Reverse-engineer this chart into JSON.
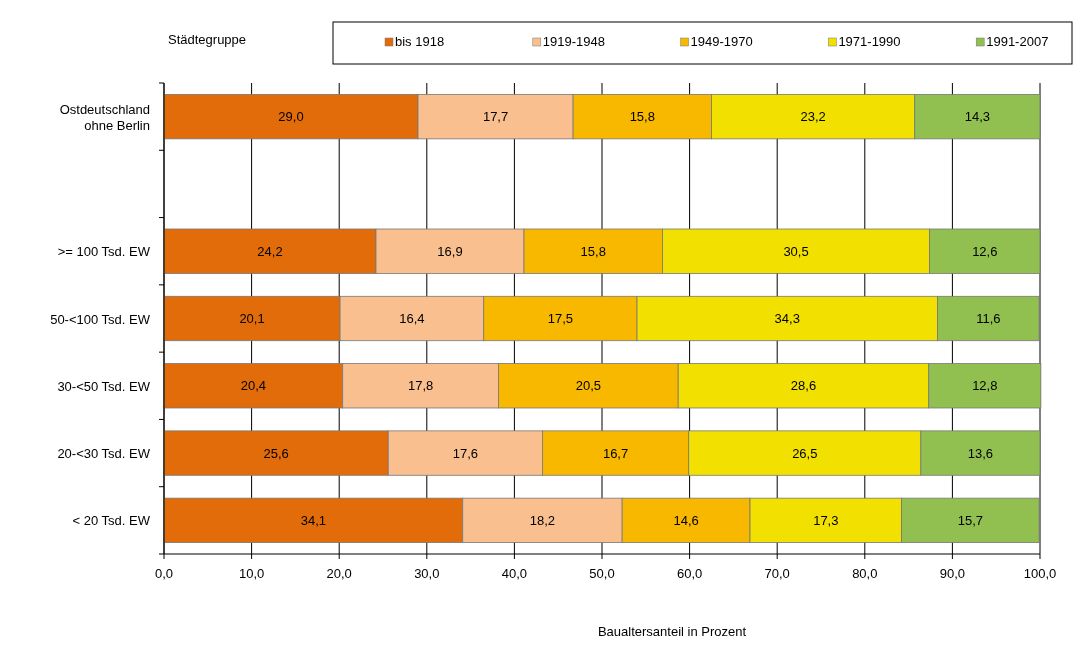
{
  "chart_data": {
    "type": "bar",
    "orientation": "horizontal",
    "stacked": true,
    "xlabel": "Baualtersanteil in Prozent",
    "legend_title": "Städtegruppe",
    "legend": "top",
    "grid": "x",
    "categories": [
      "Ostdeutschland ohne Berlin",
      null,
      ">= 100 Tsd. EW",
      "50-<100 Tsd. EW",
      "30-<50 Tsd. EW",
      "20-<30 Tsd. EW",
      "< 20 Tsd. EW"
    ],
    "xlim": [
      0,
      100
    ],
    "xticks": [
      {
        "value": 0,
        "label": "0,0"
      },
      {
        "value": 10,
        "label": "10,0"
      },
      {
        "value": 20,
        "label": "20,0"
      },
      {
        "value": 30,
        "label": "30,0"
      },
      {
        "value": 40,
        "label": "40,0"
      },
      {
        "value": 50,
        "label": "50,0"
      },
      {
        "value": 60,
        "label": "60,0"
      },
      {
        "value": 70,
        "label": "70,0"
      },
      {
        "value": 80,
        "label": "80,0"
      },
      {
        "value": 90,
        "label": "90,0"
      },
      {
        "value": 100,
        "label": "100,0"
      }
    ],
    "series": [
      {
        "name": "bis 1918",
        "color": "#e36c0a",
        "values": [
          29.0,
          null,
          24.2,
          20.1,
          20.4,
          25.6,
          34.1
        ],
        "value_labels": [
          "29,0",
          null,
          "24,2",
          "20,1",
          "20,4",
          "25,6",
          "34,1"
        ]
      },
      {
        "name": "1919-1948",
        "color": "#f9bf8f",
        "values": [
          17.7,
          null,
          16.9,
          16.4,
          17.8,
          17.6,
          18.2
        ],
        "value_labels": [
          "17,7",
          null,
          "16,9",
          "16,4",
          "17,8",
          "17,6",
          "18,2"
        ]
      },
      {
        "name": "1949-1970",
        "color": "#f9b800",
        "values": [
          15.8,
          null,
          15.8,
          17.5,
          20.5,
          16.7,
          14.6
        ],
        "value_labels": [
          "15,8",
          null,
          "15,8",
          "17,5",
          "20,5",
          "16,7",
          "14,6"
        ]
      },
      {
        "name": "1971-1990",
        "color": "#f2e100",
        "values": [
          23.2,
          null,
          30.5,
          34.3,
          28.6,
          26.5,
          17.3
        ],
        "value_labels": [
          "23,2",
          null,
          "30,5",
          "34,3",
          "28,6",
          "26,5",
          "17,3"
        ]
      },
      {
        "name": "1991-2007",
        "color": "#92c050",
        "values": [
          14.3,
          null,
          12.6,
          11.6,
          12.8,
          13.6,
          15.7
        ],
        "value_labels": [
          "14,3",
          null,
          "12,6",
          "11,6",
          "12,8",
          "13,6",
          "15,7"
        ]
      }
    ]
  }
}
